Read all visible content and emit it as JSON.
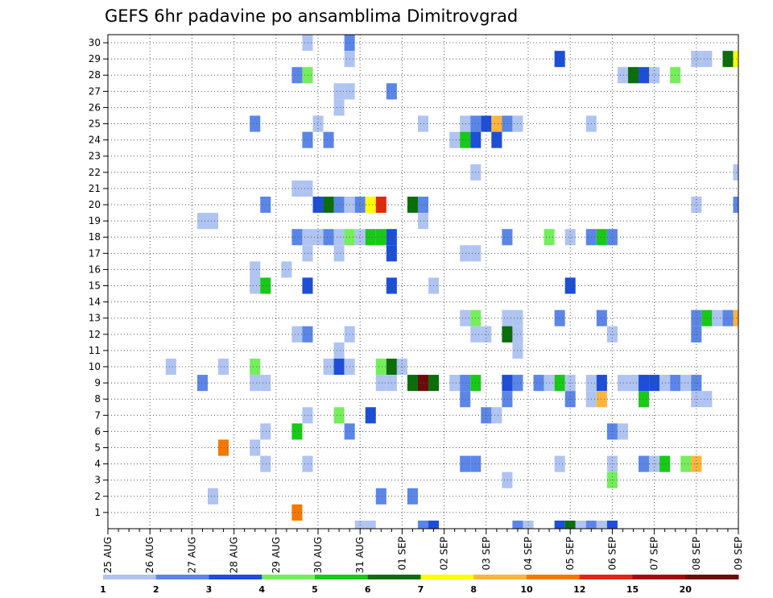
{
  "chart_data": {
    "type": "heatmap",
    "title": "GEFS 6hr padavine po ansamblima Dimitrovgrad",
    "xlabel": "",
    "ylabel": "",
    "x_tick_labels": [
      "25 AUG",
      "26 AUG",
      "27 AUG",
      "28 AUG",
      "29 AUG",
      "30 AUG",
      "31 AUG",
      "01 SEP",
      "02 SEP",
      "03 SEP",
      "04 SEP",
      "05 SEP",
      "06 SEP",
      "07 SEP",
      "08 SEP",
      "09 SEP"
    ],
    "y_tick_labels": [
      "1",
      "2",
      "3",
      "4",
      "5",
      "6",
      "7",
      "8",
      "9",
      "10",
      "11",
      "12",
      "13",
      "14",
      "15",
      "16",
      "17",
      "18",
      "19",
      "20",
      "21",
      "22",
      "23",
      "24",
      "25",
      "26",
      "27",
      "28",
      "29",
      "30"
    ],
    "x_range_steps": [
      0,
      60
    ],
    "steps_per_day": 4,
    "y_range": [
      0,
      30
    ],
    "grid": true,
    "colorbar": {
      "boundaries": [
        "1",
        "2",
        "3",
        "4",
        "5",
        "6",
        "7",
        "8",
        "10",
        "12",
        "15",
        "20"
      ],
      "colors": [
        "#b0c4f2",
        "#5b86e8",
        "#1c4ed8",
        "#74ee5a",
        "#18c918",
        "#0a6e0a",
        "#ffff00",
        "#ffb43c",
        "#f47800",
        "#e02a0a",
        "#a50a0a",
        "#6e0a0a"
      ]
    },
    "cell_unit": "6-hour step index from 25 AUG 00z; member row",
    "cells": [
      {
        "t": 19,
        "m": 30,
        "c": 0
      },
      {
        "t": 23,
        "m": 30,
        "c": 1
      },
      {
        "t": 23,
        "m": 29,
        "c": 0
      },
      {
        "t": 43,
        "m": 29,
        "c": 2
      },
      {
        "t": 56,
        "m": 29,
        "c": 0
      },
      {
        "t": 57,
        "m": 29,
        "c": 0
      },
      {
        "t": 59,
        "m": 29,
        "c": 5
      },
      {
        "t": 60,
        "m": 29,
        "c": 6
      },
      {
        "t": 18,
        "m": 28,
        "c": 1
      },
      {
        "t": 19,
        "m": 28,
        "c": 3
      },
      {
        "t": 49,
        "m": 28,
        "c": 0
      },
      {
        "t": 50,
        "m": 28,
        "c": 5
      },
      {
        "t": 51,
        "m": 28,
        "c": 2
      },
      {
        "t": 52,
        "m": 28,
        "c": 0
      },
      {
        "t": 54,
        "m": 28,
        "c": 3
      },
      {
        "t": 22,
        "m": 27,
        "c": 0
      },
      {
        "t": 23,
        "m": 27,
        "c": 0
      },
      {
        "t": 27,
        "m": 27,
        "c": 1
      },
      {
        "t": 22,
        "m": 26,
        "c": 0
      },
      {
        "t": 14,
        "m": 25,
        "c": 1
      },
      {
        "t": 20,
        "m": 25,
        "c": 0
      },
      {
        "t": 30,
        "m": 25,
        "c": 0
      },
      {
        "t": 34,
        "m": 25,
        "c": 0
      },
      {
        "t": 35,
        "m": 25,
        "c": 1
      },
      {
        "t": 36,
        "m": 25,
        "c": 2
      },
      {
        "t": 37,
        "m": 25,
        "c": 7
      },
      {
        "t": 38,
        "m": 25,
        "c": 1
      },
      {
        "t": 39,
        "m": 25,
        "c": 0
      },
      {
        "t": 46,
        "m": 25,
        "c": 0
      },
      {
        "t": 19,
        "m": 24,
        "c": 1
      },
      {
        "t": 21,
        "m": 24,
        "c": 1
      },
      {
        "t": 33,
        "m": 24,
        "c": 0
      },
      {
        "t": 34,
        "m": 24,
        "c": 4
      },
      {
        "t": 35,
        "m": 24,
        "c": 2
      },
      {
        "t": 37,
        "m": 24,
        "c": 2
      },
      {
        "t": 35,
        "m": 22,
        "c": 0
      },
      {
        "t": 60,
        "m": 22,
        "c": 0
      },
      {
        "t": 18,
        "m": 21,
        "c": 0
      },
      {
        "t": 19,
        "m": 21,
        "c": 0
      },
      {
        "t": 15,
        "m": 20,
        "c": 1
      },
      {
        "t": 20,
        "m": 20,
        "c": 2
      },
      {
        "t": 21,
        "m": 20,
        "c": 5
      },
      {
        "t": 22,
        "m": 20,
        "c": 1
      },
      {
        "t": 23,
        "m": 20,
        "c": 0
      },
      {
        "t": 24,
        "m": 20,
        "c": 1
      },
      {
        "t": 25,
        "m": 20,
        "c": 6
      },
      {
        "t": 26,
        "m": 20,
        "c": 9
      },
      {
        "t": 29,
        "m": 20,
        "c": 5
      },
      {
        "t": 30,
        "m": 20,
        "c": 1
      },
      {
        "t": 56,
        "m": 20,
        "c": 0
      },
      {
        "t": 60,
        "m": 20,
        "c": 1
      },
      {
        "t": 9,
        "m": 19,
        "c": 0
      },
      {
        "t": 10,
        "m": 19,
        "c": 0
      },
      {
        "t": 30,
        "m": 19,
        "c": 0
      },
      {
        "t": 18,
        "m": 18,
        "c": 1
      },
      {
        "t": 19,
        "m": 18,
        "c": 0
      },
      {
        "t": 20,
        "m": 18,
        "c": 0
      },
      {
        "t": 21,
        "m": 18,
        "c": 1
      },
      {
        "t": 22,
        "m": 18,
        "c": 0
      },
      {
        "t": 23,
        "m": 18,
        "c": 3
      },
      {
        "t": 24,
        "m": 18,
        "c": 0
      },
      {
        "t": 25,
        "m": 18,
        "c": 4
      },
      {
        "t": 26,
        "m": 18,
        "c": 4
      },
      {
        "t": 27,
        "m": 18,
        "c": 2
      },
      {
        "t": 38,
        "m": 18,
        "c": 1
      },
      {
        "t": 42,
        "m": 18,
        "c": 3
      },
      {
        "t": 44,
        "m": 18,
        "c": 0
      },
      {
        "t": 46,
        "m": 18,
        "c": 1
      },
      {
        "t": 47,
        "m": 18,
        "c": 4
      },
      {
        "t": 48,
        "m": 18,
        "c": 1
      },
      {
        "t": 19,
        "m": 17,
        "c": 0
      },
      {
        "t": 22,
        "m": 17,
        "c": 0
      },
      {
        "t": 27,
        "m": 17,
        "c": 2
      },
      {
        "t": 34,
        "m": 17,
        "c": 0
      },
      {
        "t": 35,
        "m": 17,
        "c": 0
      },
      {
        "t": 14,
        "m": 16,
        "c": 0
      },
      {
        "t": 17,
        "m": 16,
        "c": 0
      },
      {
        "t": 14,
        "m": 15,
        "c": 0
      },
      {
        "t": 15,
        "m": 15,
        "c": 4
      },
      {
        "t": 19,
        "m": 15,
        "c": 2
      },
      {
        "t": 27,
        "m": 15,
        "c": 2
      },
      {
        "t": 31,
        "m": 15,
        "c": 0
      },
      {
        "t": 44,
        "m": 15,
        "c": 2
      },
      {
        "t": 34,
        "m": 13,
        "c": 0
      },
      {
        "t": 35,
        "m": 13,
        "c": 3
      },
      {
        "t": 38,
        "m": 13,
        "c": 0
      },
      {
        "t": 39,
        "m": 13,
        "c": 0
      },
      {
        "t": 43,
        "m": 13,
        "c": 1
      },
      {
        "t": 47,
        "m": 13,
        "c": 1
      },
      {
        "t": 56,
        "m": 13,
        "c": 1
      },
      {
        "t": 57,
        "m": 13,
        "c": 4
      },
      {
        "t": 58,
        "m": 13,
        "c": 0
      },
      {
        "t": 59,
        "m": 13,
        "c": 1
      },
      {
        "t": 60,
        "m": 13,
        "c": 7
      },
      {
        "t": 18,
        "m": 12,
        "c": 0
      },
      {
        "t": 19,
        "m": 12,
        "c": 1
      },
      {
        "t": 23,
        "m": 12,
        "c": 0
      },
      {
        "t": 35,
        "m": 12,
        "c": 0
      },
      {
        "t": 36,
        "m": 12,
        "c": 0
      },
      {
        "t": 38,
        "m": 12,
        "c": 5
      },
      {
        "t": 39,
        "m": 12,
        "c": 0
      },
      {
        "t": 48,
        "m": 12,
        "c": 0
      },
      {
        "t": 56,
        "m": 12,
        "c": 1
      },
      {
        "t": 22,
        "m": 11,
        "c": 0
      },
      {
        "t": 39,
        "m": 11,
        "c": 0
      },
      {
        "t": 6,
        "m": 10,
        "c": 0
      },
      {
        "t": 11,
        "m": 10,
        "c": 0
      },
      {
        "t": 14,
        "m": 10,
        "c": 3
      },
      {
        "t": 21,
        "m": 10,
        "c": 0
      },
      {
        "t": 22,
        "m": 10,
        "c": 2
      },
      {
        "t": 23,
        "m": 10,
        "c": 0
      },
      {
        "t": 26,
        "m": 10,
        "c": 3
      },
      {
        "t": 27,
        "m": 10,
        "c": 5
      },
      {
        "t": 28,
        "m": 10,
        "c": 0
      },
      {
        "t": 9,
        "m": 9,
        "c": 1
      },
      {
        "t": 14,
        "m": 9,
        "c": 0
      },
      {
        "t": 15,
        "m": 9,
        "c": 0
      },
      {
        "t": 26,
        "m": 9,
        "c": 0
      },
      {
        "t": 27,
        "m": 9,
        "c": 0
      },
      {
        "t": 29,
        "m": 9,
        "c": 5
      },
      {
        "t": 30,
        "m": 9,
        "c": 11
      },
      {
        "t": 31,
        "m": 9,
        "c": 5
      },
      {
        "t": 33,
        "m": 9,
        "c": 0
      },
      {
        "t": 34,
        "m": 9,
        "c": 1
      },
      {
        "t": 35,
        "m": 9,
        "c": 4
      },
      {
        "t": 38,
        "m": 9,
        "c": 2
      },
      {
        "t": 39,
        "m": 9,
        "c": 1
      },
      {
        "t": 41,
        "m": 9,
        "c": 1
      },
      {
        "t": 42,
        "m": 9,
        "c": 0
      },
      {
        "t": 43,
        "m": 9,
        "c": 4
      },
      {
        "t": 44,
        "m": 9,
        "c": 0
      },
      {
        "t": 46,
        "m": 9,
        "c": 0
      },
      {
        "t": 47,
        "m": 9,
        "c": 2
      },
      {
        "t": 49,
        "m": 9,
        "c": 0
      },
      {
        "t": 50,
        "m": 9,
        "c": 0
      },
      {
        "t": 51,
        "m": 9,
        "c": 2
      },
      {
        "t": 52,
        "m": 9,
        "c": 2
      },
      {
        "t": 53,
        "m": 9,
        "c": 0
      },
      {
        "t": 54,
        "m": 9,
        "c": 1
      },
      {
        "t": 55,
        "m": 9,
        "c": 0
      },
      {
        "t": 56,
        "m": 9,
        "c": 1
      },
      {
        "t": 34,
        "m": 8,
        "c": 1
      },
      {
        "t": 38,
        "m": 8,
        "c": 1
      },
      {
        "t": 44,
        "m": 8,
        "c": 1
      },
      {
        "t": 46,
        "m": 8,
        "c": 0
      },
      {
        "t": 47,
        "m": 8,
        "c": 7
      },
      {
        "t": 51,
        "m": 8,
        "c": 4
      },
      {
        "t": 56,
        "m": 8,
        "c": 0
      },
      {
        "t": 57,
        "m": 8,
        "c": 0
      },
      {
        "t": 19,
        "m": 7,
        "c": 0
      },
      {
        "t": 22,
        "m": 7,
        "c": 3
      },
      {
        "t": 25,
        "m": 7,
        "c": 2
      },
      {
        "t": 36,
        "m": 7,
        "c": 1
      },
      {
        "t": 37,
        "m": 7,
        "c": 0
      },
      {
        "t": 15,
        "m": 6,
        "c": 0
      },
      {
        "t": 18,
        "m": 6,
        "c": 4
      },
      {
        "t": 23,
        "m": 6,
        "c": 1
      },
      {
        "t": 48,
        "m": 6,
        "c": 1
      },
      {
        "t": 49,
        "m": 6,
        "c": 0
      },
      {
        "t": 11,
        "m": 5,
        "c": 8
      },
      {
        "t": 14,
        "m": 5,
        "c": 0
      },
      {
        "t": 15,
        "m": 4,
        "c": 0
      },
      {
        "t": 19,
        "m": 4,
        "c": 0
      },
      {
        "t": 34,
        "m": 4,
        "c": 1
      },
      {
        "t": 35,
        "m": 4,
        "c": 1
      },
      {
        "t": 43,
        "m": 4,
        "c": 0
      },
      {
        "t": 48,
        "m": 4,
        "c": 0
      },
      {
        "t": 51,
        "m": 4,
        "c": 1
      },
      {
        "t": 52,
        "m": 4,
        "c": 0
      },
      {
        "t": 53,
        "m": 4,
        "c": 4
      },
      {
        "t": 55,
        "m": 4,
        "c": 3
      },
      {
        "t": 56,
        "m": 4,
        "c": 7
      },
      {
        "t": 38,
        "m": 3,
        "c": 0
      },
      {
        "t": 48,
        "m": 3,
        "c": 3
      },
      {
        "t": 10,
        "m": 2,
        "c": 0
      },
      {
        "t": 26,
        "m": 2,
        "c": 1
      },
      {
        "t": 29,
        "m": 2,
        "c": 1
      },
      {
        "t": 18,
        "m": 1,
        "c": 8
      },
      {
        "t": 24,
        "m": 0,
        "c": 0
      },
      {
        "t": 25,
        "m": 0,
        "c": 0
      },
      {
        "t": 30,
        "m": 0,
        "c": 1
      },
      {
        "t": 31,
        "m": 0,
        "c": 2
      },
      {
        "t": 39,
        "m": 0,
        "c": 1
      },
      {
        "t": 40,
        "m": 0,
        "c": 0
      },
      {
        "t": 43,
        "m": 0,
        "c": 2
      },
      {
        "t": 44,
        "m": 0,
        "c": 5
      },
      {
        "t": 45,
        "m": 0,
        "c": 0
      },
      {
        "t": 46,
        "m": 0,
        "c": 1
      },
      {
        "t": 47,
        "m": 0,
        "c": 0
      },
      {
        "t": 48,
        "m": 0,
        "c": 2
      }
    ]
  }
}
